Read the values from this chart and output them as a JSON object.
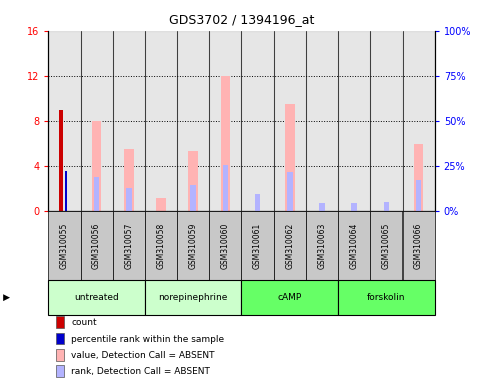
{
  "title": "GDS3702 / 1394196_at",
  "samples": [
    "GSM310055",
    "GSM310056",
    "GSM310057",
    "GSM310058",
    "GSM310059",
    "GSM310060",
    "GSM310061",
    "GSM310062",
    "GSM310063",
    "GSM310064",
    "GSM310065",
    "GSM310066"
  ],
  "agents": [
    {
      "label": "untreated",
      "start": 0,
      "end": 3
    },
    {
      "label": "norepinephrine",
      "start": 3,
      "end": 6
    },
    {
      "label": "cAMP",
      "start": 6,
      "end": 9
    },
    {
      "label": "forskolin",
      "start": 9,
      "end": 12
    }
  ],
  "agent_colors": [
    "#ccffcc",
    "#ccffcc",
    "#66ff66",
    "#66ff66"
  ],
  "value_bars": [
    0,
    8.0,
    5.5,
    1.2,
    5.3,
    12.0,
    0,
    9.5,
    0,
    0,
    0,
    6.0
  ],
  "rank_bars": [
    0,
    3.0,
    2.1,
    0,
    2.3,
    4.1,
    1.5,
    3.5,
    0.7,
    0.7,
    0.8,
    2.8
  ],
  "count_bar": [
    9.0,
    0,
    0,
    0,
    0,
    0,
    0,
    0,
    0,
    0,
    0,
    0
  ],
  "pct_rank": [
    3.6,
    0,
    0,
    0,
    0,
    0,
    0,
    0,
    0,
    0,
    0,
    0
  ],
  "ylim_left": [
    0,
    16
  ],
  "ylim_right": [
    0,
    100
  ],
  "yticks_left": [
    0,
    4,
    8,
    12,
    16
  ],
  "yticks_right": [
    0,
    25,
    50,
    75,
    100
  ],
  "ytick_labels_left": [
    "0",
    "4",
    "8",
    "12",
    "16"
  ],
  "ytick_labels_right": [
    "0%",
    "25%",
    "50%",
    "75%",
    "100%"
  ],
  "color_value": "#ffb3b3",
  "color_rank": "#b3b3ff",
  "color_count": "#cc0000",
  "color_pct": "#0000cc",
  "sample_bg": "#c8c8c8",
  "legend_items": [
    {
      "color": "#cc0000",
      "label": "count"
    },
    {
      "color": "#0000cc",
      "label": "percentile rank within the sample"
    },
    {
      "color": "#ffb3b3",
      "label": "value, Detection Call = ABSENT"
    },
    {
      "color": "#b3b3ff",
      "label": "rank, Detection Call = ABSENT"
    }
  ]
}
